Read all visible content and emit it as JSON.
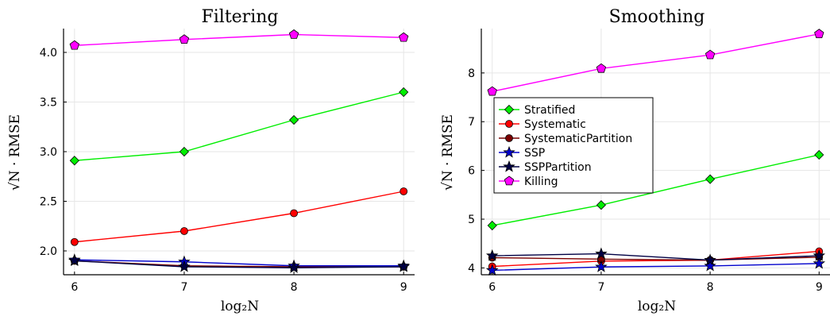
{
  "colors": {
    "Stratified": "#00ee00",
    "Systematic": "#ff0000",
    "SystematicPartition": "#7a0000",
    "SSP": "#0000cc",
    "SSPPartition": "#000044",
    "Killing": "#ff00ff"
  },
  "chart_data": [
    {
      "type": "line",
      "title": "Filtering",
      "xlabel": "log₂N",
      "ylabel": "√N · RMSE",
      "x": [
        6,
        7,
        8,
        9
      ],
      "xticks": [
        "6",
        "7",
        "8",
        "9"
      ],
      "yticks": [
        "2.0",
        "2.5",
        "3.0",
        "3.5",
        "4.0"
      ],
      "ytick_values": [
        2.0,
        2.5,
        3.0,
        3.5,
        4.0
      ],
      "xlim": [
        5.9,
        9.1
      ],
      "ylim": [
        1.76,
        4.24
      ],
      "grid": true,
      "series": [
        {
          "name": "Stratified",
          "marker": "diamond",
          "values": [
            2.91,
            3.0,
            3.32,
            3.6
          ]
        },
        {
          "name": "Systematic",
          "marker": "circle",
          "values": [
            2.09,
            2.2,
            2.38,
            2.6
          ]
        },
        {
          "name": "SystematicPartition",
          "marker": "circle",
          "values": [
            1.9,
            1.85,
            1.84,
            1.84
          ]
        },
        {
          "name": "SSP",
          "marker": "star",
          "values": [
            1.91,
            1.89,
            1.85,
            1.85
          ]
        },
        {
          "name": "SSPPartition",
          "marker": "star",
          "values": [
            1.9,
            1.84,
            1.83,
            1.84
          ]
        },
        {
          "name": "Killing",
          "marker": "pentagon",
          "values": [
            4.07,
            4.13,
            4.18,
            4.15
          ]
        }
      ]
    },
    {
      "type": "line",
      "title": "Smoothing",
      "xlabel": "log₂N",
      "ylabel": "√N · RMSE",
      "x": [
        6,
        7,
        8,
        9
      ],
      "xticks": [
        "6",
        "7",
        "8",
        "9"
      ],
      "yticks": [
        "4",
        "5",
        "6",
        "7",
        "8"
      ],
      "ytick_values": [
        4,
        5,
        6,
        7,
        8
      ],
      "xlim": [
        5.9,
        9.1
      ],
      "ylim": [
        3.86,
        8.91
      ],
      "grid": true,
      "legend_position": "middle-left",
      "series": [
        {
          "name": "Stratified",
          "marker": "diamond",
          "values": [
            4.87,
            5.29,
            5.82,
            6.32
          ]
        },
        {
          "name": "Systematic",
          "marker": "circle",
          "values": [
            4.03,
            4.14,
            4.16,
            4.34
          ]
        },
        {
          "name": "SystematicPartition",
          "marker": "circle",
          "values": [
            4.21,
            4.18,
            4.16,
            4.22
          ]
        },
        {
          "name": "SSP",
          "marker": "star",
          "values": [
            3.95,
            4.02,
            4.04,
            4.09
          ]
        },
        {
          "name": "SSPPartition",
          "marker": "star",
          "values": [
            4.25,
            4.29,
            4.16,
            4.25
          ]
        },
        {
          "name": "Killing",
          "marker": "pentagon",
          "values": [
            7.62,
            8.09,
            8.37,
            8.8
          ]
        }
      ]
    }
  ]
}
